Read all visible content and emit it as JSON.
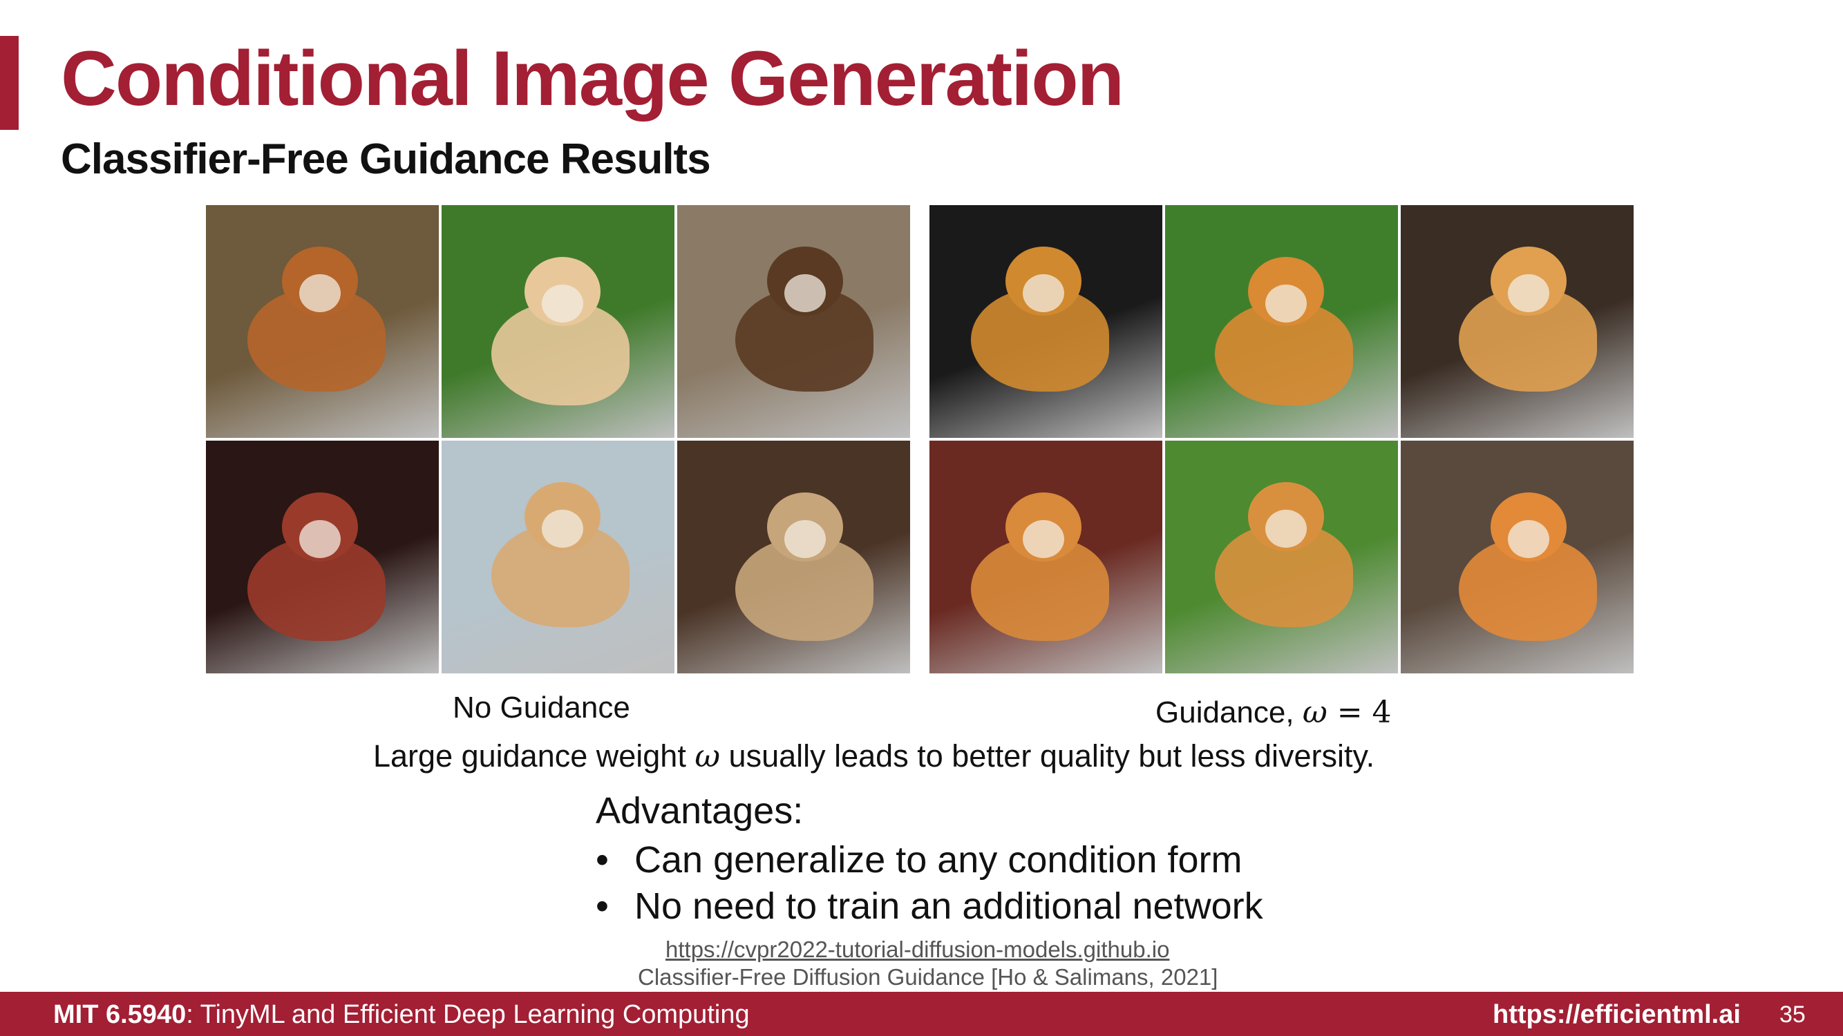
{
  "slide": {
    "title": "Conditional Image Generation",
    "subtitle": "Classifier-Free Guidance Results"
  },
  "figure": {
    "left_caption": "No Guidance",
    "right_caption_prefix": "Guidance, ",
    "omega_symbol": "ω",
    "right_caption_math": " = 4",
    "takeaway_before": "Large guidance weight ",
    "takeaway_after": " usually leads to better quality but less diversity.",
    "left_grid_tiles": [
      {
        "name": "corgi-puppy-closeup-image",
        "bg": "#6e5a3c",
        "fg": "#b5652a"
      },
      {
        "name": "corgi-on-grass-image",
        "bg": "#3f7a2a",
        "fg": "#e8c89a"
      },
      {
        "name": "forest-floor-image",
        "bg": "#8a7a66",
        "fg": "#5a3a22"
      },
      {
        "name": "people-with-dog-image",
        "bg": "#2a1614",
        "fg": "#9a3a2a"
      },
      {
        "name": "corgi-by-lake-image",
        "bg": "#b6c4cc",
        "fg": "#d8aa72"
      },
      {
        "name": "fluffy-dog-indoors-image",
        "bg": "#4a3426",
        "fg": "#c7a57a"
      }
    ],
    "right_grid_tiles": [
      {
        "name": "corgi-face-closeup-image",
        "bg": "#1b1a1a",
        "fg": "#d0892e"
      },
      {
        "name": "corgi-standing-grass-image",
        "bg": "#3f7f2c",
        "fg": "#d98a32"
      },
      {
        "name": "corgi-sitting-mulch-image",
        "bg": "#3a2d24",
        "fg": "#e0a050"
      },
      {
        "name": "corgi-lying-carpet-image",
        "bg": "#6a2a22",
        "fg": "#d98a3a"
      },
      {
        "name": "corgi-sitting-lawn-image",
        "bg": "#4d8a30",
        "fg": "#d9903e"
      },
      {
        "name": "corgi-smiling-image",
        "bg": "#5a4a3e",
        "fg": "#e28a38"
      }
    ]
  },
  "advantages": {
    "heading": "Advantages:",
    "items": [
      "Can generalize to any condition form",
      "No need to train an additional network"
    ],
    "bullet": "•"
  },
  "references": {
    "link": "https://cvpr2022-tutorial-diffusion-models.github.io",
    "citation": "Classifier-Free Diffusion Guidance [Ho & Salimans, 2021]"
  },
  "footer": {
    "course_code": "MIT 6.5940",
    "course_name": ": TinyML and Efficient Deep Learning Computing",
    "url": "https://efficientml.ai",
    "page": "35"
  },
  "colors": {
    "accent": "#a31f34"
  }
}
